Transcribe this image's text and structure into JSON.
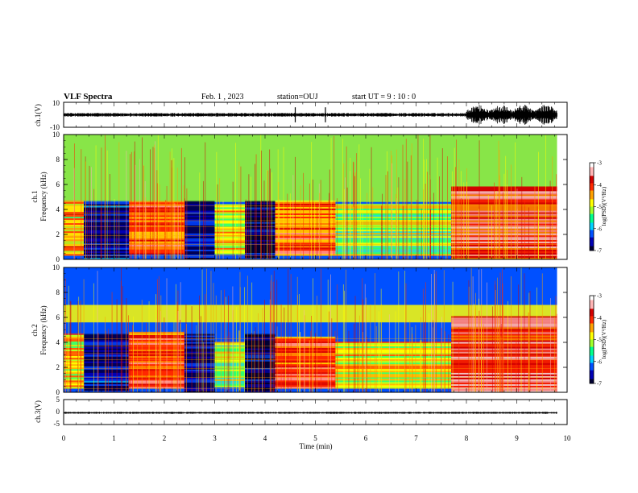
{
  "header": {
    "title": "VLF Spectra",
    "date": "Feb. 1 , 2023",
    "station": "station=OUJ",
    "start": "start UT = 9 : 10 : 0"
  },
  "colors": {
    "waveform": "#000000",
    "colormap": [
      "#000033",
      "#0000b4",
      "#0050ff",
      "#00d2ff",
      "#00ff8c",
      "#a0ff28",
      "#ffff00",
      "#ffa000",
      "#ff2800",
      "#d20000",
      "#ffb4b4",
      "#ffffff"
    ]
  },
  "chart_data": [
    {
      "type": "line",
      "name": "ch1-waveform",
      "ylabel": "ch.1(V)",
      "yticks": [
        "10",
        "-10"
      ],
      "xlim": [
        0,
        10
      ],
      "ylim": [
        -10,
        10
      ],
      "baseline": 0,
      "segments": [
        {
          "x": [
            0,
            8.0
          ],
          "amplitude": 1.5
        },
        {
          "x": [
            8.0,
            9.8
          ],
          "amplitude": 8
        }
      ],
      "spikes": [
        4.6,
        5.2
      ]
    },
    {
      "type": "heatmap",
      "name": "ch1-spectrogram",
      "ylabel_line1": "ch.1",
      "ylabel_line2": "Frequency (kHz)",
      "xlim": [
        0,
        9.8
      ],
      "ylim": [
        0,
        10
      ],
      "yticks": [
        "0",
        "2",
        "4",
        "6",
        "8",
        "10"
      ],
      "zlim": [
        -7,
        -3
      ],
      "colorbar_label": "log(PSD)(V²/Hz)",
      "colorbar_ticks": [
        "-3",
        "-4",
        "-5",
        "-6",
        "-7"
      ],
      "regions": [
        {
          "x": [
            0,
            0.4
          ],
          "band_khz": [
            0.3,
            4.6
          ],
          "level": -4.6
        },
        {
          "x": [
            0.4,
            1.3
          ],
          "band_khz": [
            0,
            4.6
          ],
          "level": -6.8
        },
        {
          "x": [
            1.3,
            2.4
          ],
          "band_khz": [
            0.4,
            4.6
          ],
          "level": -4.1
        },
        {
          "x": [
            2.4,
            3.0
          ],
          "band_khz": [
            0,
            4.6
          ],
          "level": -6.8
        },
        {
          "x": [
            3.0,
            3.6
          ],
          "band_khz": [
            0.4,
            4.4
          ],
          "level": -4.9
        },
        {
          "x": [
            3.6,
            4.2
          ],
          "band_khz": [
            0,
            4.6
          ],
          "level": -6.9
        },
        {
          "x": [
            4.2,
            5.4
          ],
          "band_khz": [
            0.3,
            4.6
          ],
          "level": -4.2
        },
        {
          "x": [
            5.4,
            7.7
          ],
          "band_khz": [
            0.3,
            4.4
          ],
          "level": -5.2
        },
        {
          "x": [
            7.7,
            9.8
          ],
          "band_khz": [
            0,
            5.8
          ],
          "level": -3.8
        }
      ],
      "upper_band": {
        "band_khz": [
          4.6,
          10
        ],
        "level": -5.3
      }
    },
    {
      "type": "heatmap",
      "name": "ch2-spectrogram",
      "ylabel_line1": "ch.2",
      "ylabel_line2": "Frequency (kHz)",
      "xlim": [
        0,
        9.8
      ],
      "ylim": [
        0,
        10
      ],
      "yticks": [
        "0",
        "2",
        "4",
        "6",
        "8",
        "10"
      ],
      "zlim": [
        -7,
        -3
      ],
      "colorbar_label": "log(PSD)(V²/Hz)",
      "colorbar_ticks": [
        "-3",
        "-4",
        "-5",
        "-6",
        "-7"
      ],
      "regions": [
        {
          "x": [
            0,
            0.4
          ],
          "band_khz": [
            0.3,
            4.6
          ],
          "level": -4.8
        },
        {
          "x": [
            0.4,
            1.3
          ],
          "band_khz": [
            0,
            4.6
          ],
          "level": -6.8
        },
        {
          "x": [
            1.3,
            2.4
          ],
          "band_khz": [
            0.3,
            4.8
          ],
          "level": -4.0
        },
        {
          "x": [
            2.4,
            3.0
          ],
          "band_khz": [
            0,
            4.6
          ],
          "level": -6.8
        },
        {
          "x": [
            3.0,
            3.6
          ],
          "band_khz": [
            0.4,
            4.0
          ],
          "level": -5.2
        },
        {
          "x": [
            3.6,
            4.2
          ],
          "band_khz": [
            0,
            4.6
          ],
          "level": -6.9
        },
        {
          "x": [
            4.2,
            5.4
          ],
          "band_khz": [
            0.3,
            4.4
          ],
          "level": -4.0
        },
        {
          "x": [
            5.4,
            7.7
          ],
          "band_khz": [
            0.3,
            4.0
          ],
          "level": -4.9
        },
        {
          "x": [
            7.7,
            9.8
          ],
          "band_khz": [
            0,
            6.0
          ],
          "level": -3.6
        }
      ],
      "upper_band": {
        "band_khz": [
          5.6,
          7.0
        ],
        "level": -4.8
      }
    },
    {
      "type": "line",
      "name": "ch3-waveform",
      "ylabel": "ch.3(V)",
      "yticks": [
        "5",
        "0",
        "-5"
      ],
      "xlim": [
        0,
        10
      ],
      "ylim": [
        -5,
        5
      ],
      "baseline": -0.3,
      "segments": [
        {
          "x": [
            0,
            9.8
          ],
          "amplitude": 0.4
        }
      ]
    }
  ],
  "x_axis": {
    "label": "Time (min)",
    "ticks": [
      "0",
      "1",
      "2",
      "3",
      "4",
      "5",
      "6",
      "7",
      "8",
      "9",
      "10"
    ]
  }
}
